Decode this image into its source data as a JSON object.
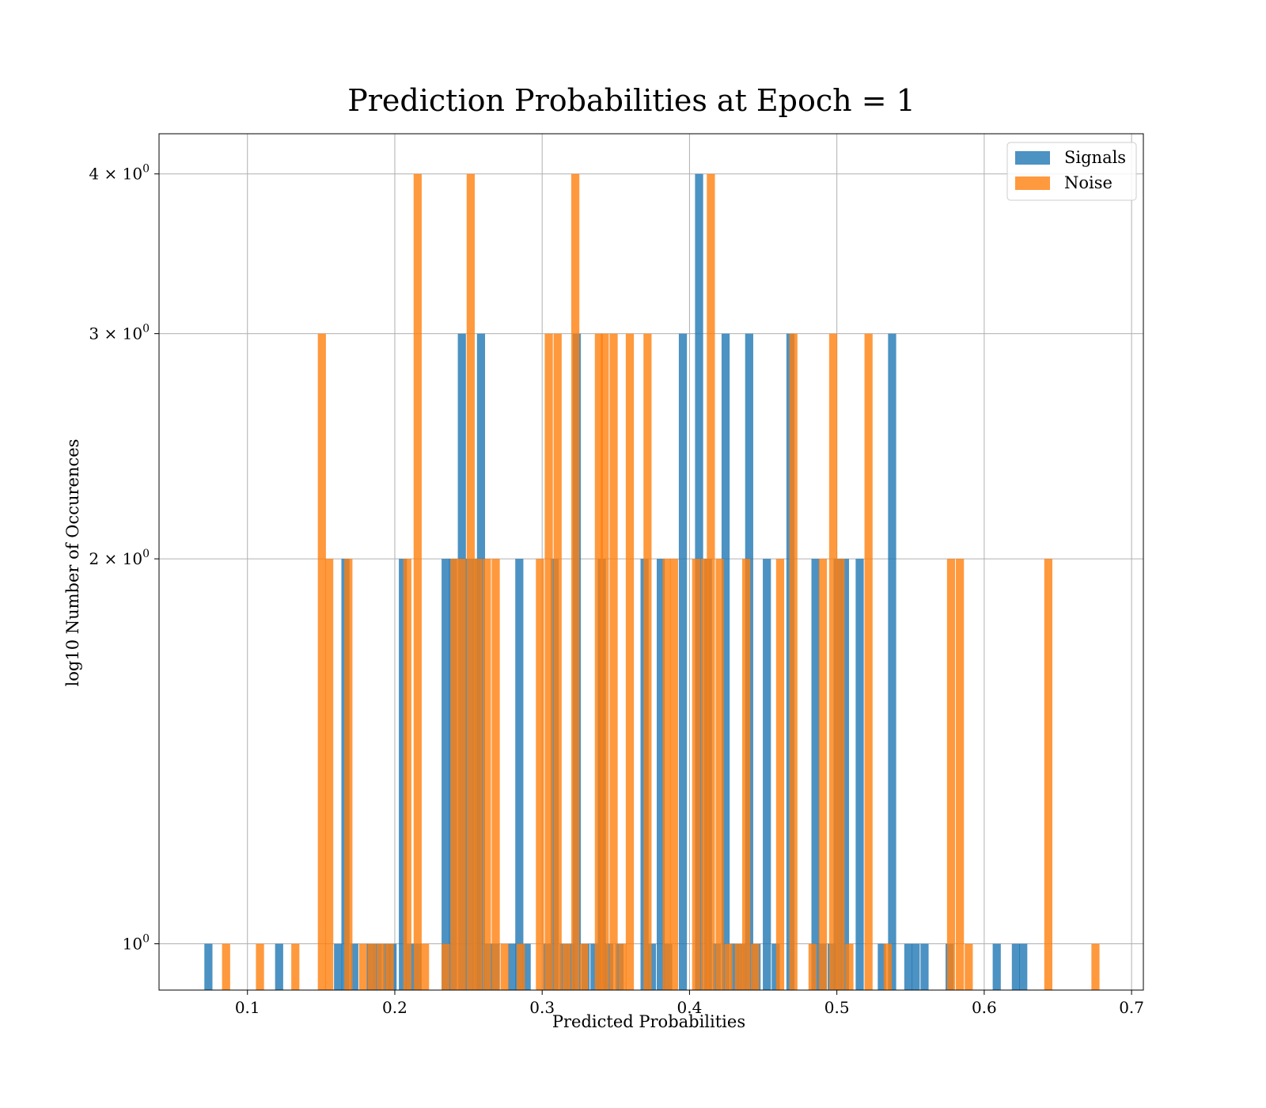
{
  "chart_data": {
    "type": "bar",
    "title": "Prediction Probabilities at Epoch = 1",
    "xlabel": "Predicted Probabilities",
    "ylabel": "log10 Number of Occurences",
    "xlim": [
      0.04,
      0.708
    ],
    "ylim": [
      0.92,
      4.3
    ],
    "yscale": "log",
    "bin_width": 0.0055,
    "grid": true,
    "legend_position": "top-right",
    "x_ticks": [
      {
        "value": 0.1,
        "label": "0.1"
      },
      {
        "value": 0.2,
        "label": "0.2"
      },
      {
        "value": 0.3,
        "label": "0.3"
      },
      {
        "value": 0.4,
        "label": "0.4"
      },
      {
        "value": 0.5,
        "label": "0.5"
      },
      {
        "value": 0.6,
        "label": "0.6"
      },
      {
        "value": 0.7,
        "label": "0.7"
      }
    ],
    "y_ticks": [
      {
        "value": 1,
        "label": "10",
        "exp": "0"
      },
      {
        "value": 2,
        "label": "2 × 10",
        "exp": "0"
      },
      {
        "value": 3,
        "label": "3 × 10",
        "exp": "0"
      },
      {
        "value": 4,
        "label": "4 × 10",
        "exp": "0"
      }
    ],
    "series": [
      {
        "name": "Signals",
        "color": "#1f77b4",
        "opacity": 0.8,
        "bins": [
          [
            0.0735,
            1
          ],
          [
            0.1215,
            1
          ],
          [
            0.1615,
            1
          ],
          [
            0.1665,
            2
          ],
          [
            0.1725,
            1
          ],
          [
            0.1835,
            1
          ],
          [
            0.1885,
            1
          ],
          [
            0.1945,
            1
          ],
          [
            0.1985,
            1
          ],
          [
            0.2055,
            2
          ],
          [
            0.2105,
            1
          ],
          [
            0.2155,
            1
          ],
          [
            0.2345,
            2
          ],
          [
            0.2395,
            2
          ],
          [
            0.2455,
            3
          ],
          [
            0.2505,
            2
          ],
          [
            0.2555,
            2
          ],
          [
            0.2585,
            3
          ],
          [
            0.2635,
            1
          ],
          [
            0.2685,
            1
          ],
          [
            0.2795,
            1
          ],
          [
            0.2845,
            2
          ],
          [
            0.2895,
            1
          ],
          [
            0.3035,
            1
          ],
          [
            0.3085,
            2
          ],
          [
            0.3145,
            1
          ],
          [
            0.3195,
            1
          ],
          [
            0.3235,
            3
          ],
          [
            0.3295,
            1
          ],
          [
            0.3355,
            1
          ],
          [
            0.3405,
            2
          ],
          [
            0.3455,
            1
          ],
          [
            0.3525,
            1
          ],
          [
            0.3695,
            2
          ],
          [
            0.3745,
            1
          ],
          [
            0.3805,
            2
          ],
          [
            0.3855,
            1
          ],
          [
            0.3955,
            3
          ],
          [
            0.4065,
            4
          ],
          [
            0.4125,
            2
          ],
          [
            0.4185,
            1
          ],
          [
            0.4245,
            3
          ],
          [
            0.4305,
            1
          ],
          [
            0.4355,
            1
          ],
          [
            0.4405,
            3
          ],
          [
            0.4455,
            1
          ],
          [
            0.4525,
            2
          ],
          [
            0.4585,
            1
          ],
          [
            0.4685,
            3
          ],
          [
            0.4855,
            2
          ],
          [
            0.4905,
            1
          ],
          [
            0.4965,
            1
          ],
          [
            0.5005,
            2
          ],
          [
            0.5055,
            2
          ],
          [
            0.5155,
            2
          ],
          [
            0.5305,
            1
          ],
          [
            0.5375,
            3
          ],
          [
            0.5485,
            1
          ],
          [
            0.5535,
            1
          ],
          [
            0.5595,
            1
          ],
          [
            0.5765,
            1
          ],
          [
            0.6085,
            1
          ],
          [
            0.6215,
            1
          ],
          [
            0.6265,
            1
          ]
        ]
      },
      {
        "name": "Noise",
        "color": "#ff7f0e",
        "opacity": 0.8,
        "bins": [
          [
            0.0855,
            1
          ],
          [
            0.1085,
            1
          ],
          [
            0.1325,
            1
          ],
          [
            0.1505,
            3
          ],
          [
            0.1555,
            2
          ],
          [
            0.1685,
            2
          ],
          [
            0.1785,
            1
          ],
          [
            0.1845,
            1
          ],
          [
            0.1905,
            1
          ],
          [
            0.1965,
            1
          ],
          [
            0.2085,
            2
          ],
          [
            0.2155,
            4
          ],
          [
            0.2205,
            1
          ],
          [
            0.2345,
            1
          ],
          [
            0.2405,
            2
          ],
          [
            0.2455,
            2
          ],
          [
            0.2515,
            4
          ],
          [
            0.2565,
            2
          ],
          [
            0.2625,
            2
          ],
          [
            0.2685,
            2
          ],
          [
            0.2745,
            1
          ],
          [
            0.2855,
            1
          ],
          [
            0.2985,
            2
          ],
          [
            0.3045,
            3
          ],
          [
            0.3105,
            3
          ],
          [
            0.3165,
            1
          ],
          [
            0.3225,
            4
          ],
          [
            0.3285,
            1
          ],
          [
            0.3385,
            3
          ],
          [
            0.3425,
            3
          ],
          [
            0.3485,
            3
          ],
          [
            0.3545,
            1
          ],
          [
            0.3595,
            3
          ],
          [
            0.3715,
            3
          ],
          [
            0.3845,
            2
          ],
          [
            0.3895,
            2
          ],
          [
            0.4045,
            2
          ],
          [
            0.4105,
            2
          ],
          [
            0.4145,
            4
          ],
          [
            0.4205,
            2
          ],
          [
            0.4265,
            1
          ],
          [
            0.4335,
            1
          ],
          [
            0.4385,
            2
          ],
          [
            0.4445,
            1
          ],
          [
            0.4615,
            2
          ],
          [
            0.4705,
            3
          ],
          [
            0.4835,
            1
          ],
          [
            0.4905,
            2
          ],
          [
            0.4975,
            3
          ],
          [
            0.5025,
            2
          ],
          [
            0.5085,
            1
          ],
          [
            0.5215,
            3
          ],
          [
            0.5345,
            1
          ],
          [
            0.5775,
            2
          ],
          [
            0.5835,
            2
          ],
          [
            0.5895,
            1
          ],
          [
            0.6435,
            2
          ],
          [
            0.6755,
            1
          ]
        ]
      }
    ]
  }
}
